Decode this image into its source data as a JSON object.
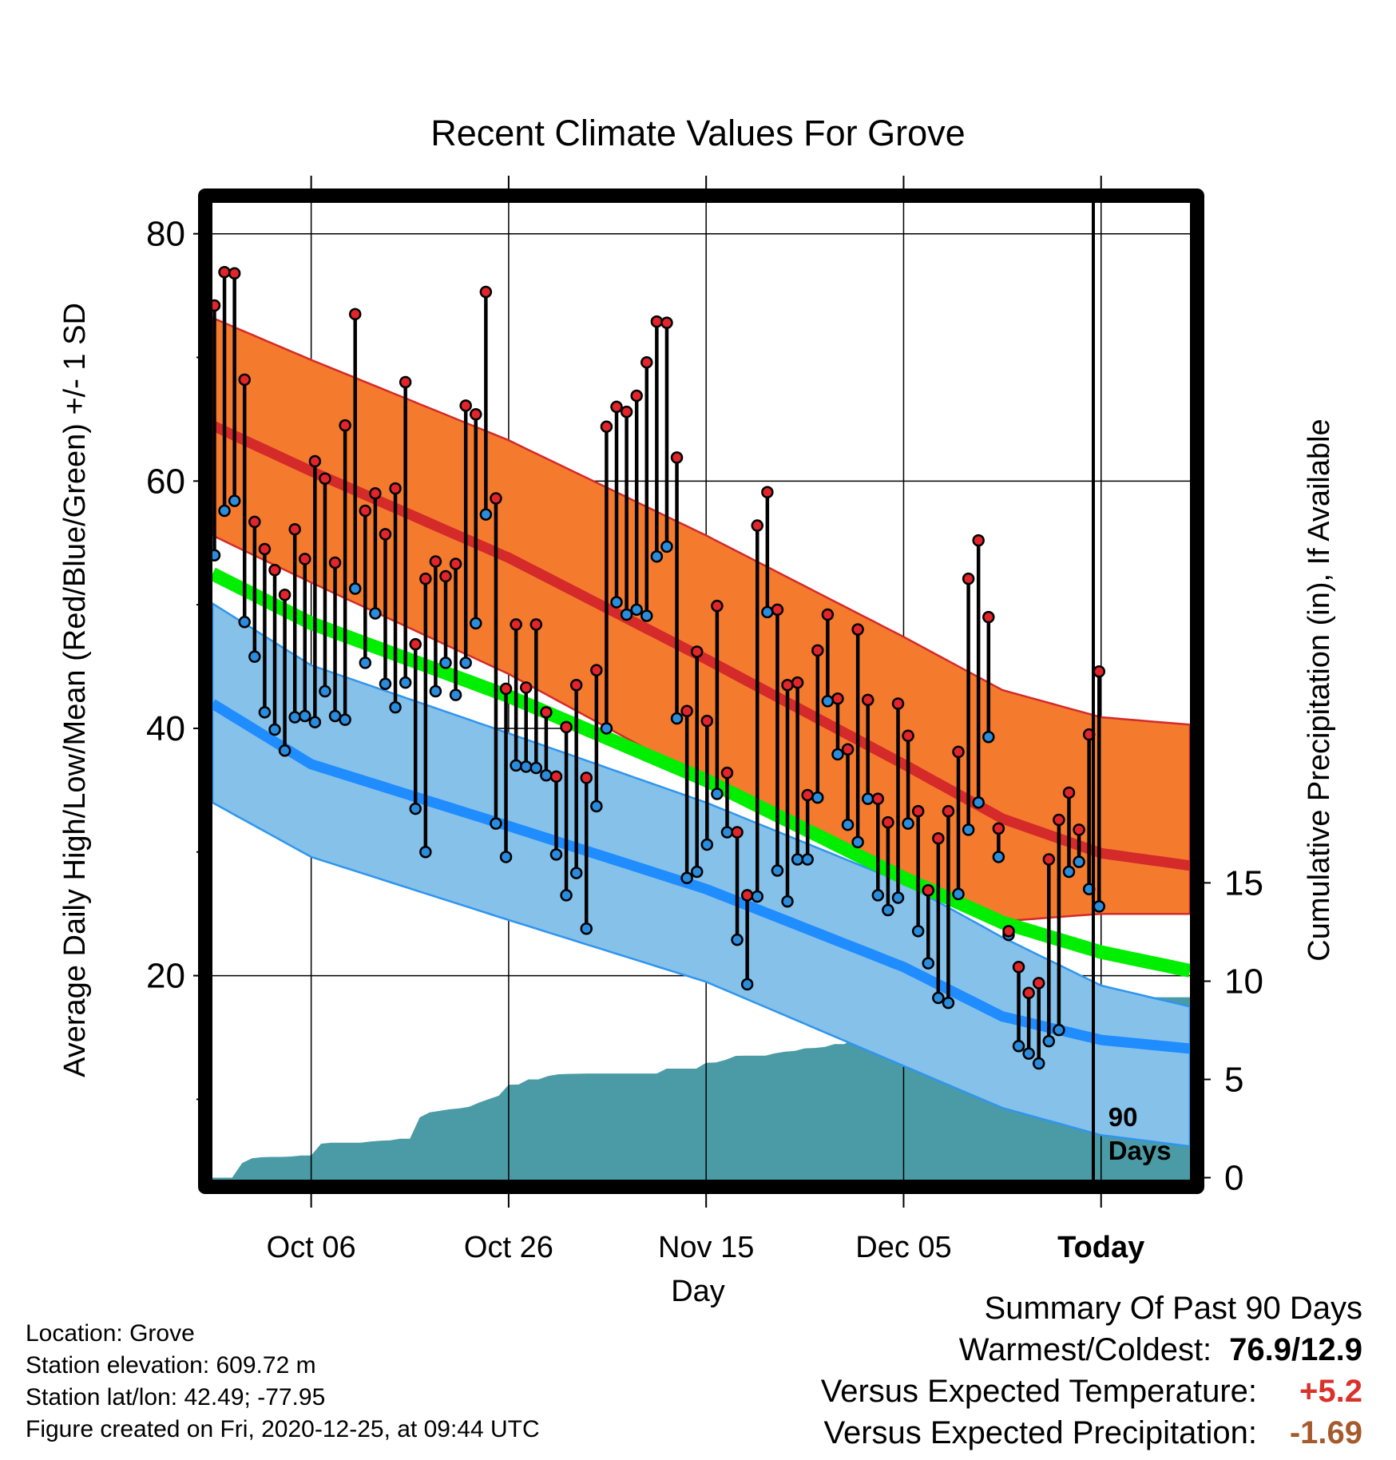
{
  "chart_data": {
    "type": "line",
    "title": "Recent Climate Values For Grove",
    "xlabel": "Day",
    "ylabel": "Average Daily High/Low/Mean (Red/Blue/Green) +/- 1 SD",
    "y2label": "Cumulative Precipitation (in), If Available",
    "x_range_days": [
      -90,
      9
    ],
    "ylim": [
      3.5,
      82.5
    ],
    "y2lim": [
      -0.1,
      49.6
    ],
    "grid": true,
    "x_ticks": [
      {
        "day": -80,
        "label": "Oct 06"
      },
      {
        "day": -60,
        "label": "Oct 26"
      },
      {
        "day": -40,
        "label": "Nov 15"
      },
      {
        "day": -20,
        "label": "Dec 05"
      },
      {
        "day": 0,
        "label": "Today"
      }
    ],
    "y_ticks": [
      20,
      40,
      60,
      80
    ],
    "y2_ticks": [
      0,
      5,
      10,
      15
    ],
    "today_marker": "90\nDays",
    "normals": {
      "days": [
        -90,
        -80,
        -60,
        -40,
        -20,
        -10,
        0,
        9
      ],
      "high_mean": [
        64.5,
        60.8,
        53.8,
        45.6,
        37.1,
        32.7,
        29.9,
        28.9
      ],
      "high_upper": [
        73.2,
        69.8,
        63.3,
        55.6,
        47.4,
        43.1,
        40.9,
        40.3
      ],
      "high_lower": [
        55.6,
        51.8,
        44.4,
        35.7,
        27.3,
        24.4,
        25.0,
        25.0
      ],
      "low_mean": [
        42.0,
        37.1,
        32.1,
        27.0,
        20.7,
        16.7,
        14.8,
        14.1
      ],
      "low_upper": [
        50.1,
        45.1,
        39.6,
        34.0,
        27.5,
        23.1,
        19.2,
        17.5
      ],
      "low_lower": [
        34.0,
        29.6,
        24.5,
        19.5,
        12.7,
        9.3,
        7.1,
        6.2
      ],
      "avg_mean": [
        52.5,
        48.5,
        42.6,
        35.8,
        27.9,
        24.3,
        21.9,
        20.4
      ]
    },
    "series": [
      {
        "name": "Daily High",
        "values": [
          74.2,
          76.9,
          76.8,
          68.2,
          56.7,
          54.5,
          52.8,
          50.8,
          56.1,
          53.7,
          61.6,
          60.2,
          53.4,
          64.5,
          73.5,
          57.6,
          59.0,
          55.7,
          59.4,
          68.0,
          46.8,
          52.1,
          53.5,
          52.3,
          53.3,
          66.1,
          65.4,
          75.3,
          58.6,
          43.2,
          48.4,
          43.3,
          48.4,
          41.3,
          36.1,
          40.1,
          43.5,
          36.0,
          44.7,
          64.4,
          66.0,
          65.6,
          66.9,
          69.6,
          72.9,
          72.8,
          61.9,
          41.4,
          46.2,
          40.6,
          49.9,
          36.4,
          31.6,
          26.5,
          56.4,
          59.1,
          49.6,
          43.5,
          43.7,
          34.6,
          46.3,
          49.2,
          42.4,
          38.3,
          48.0,
          42.3,
          34.3,
          32.4,
          42.0,
          39.4,
          33.3,
          26.9,
          31.1,
          33.3,
          38.1,
          52.1,
          55.2,
          49.0,
          31.9,
          23.6,
          20.7,
          18.6,
          19.4,
          29.4,
          32.6,
          34.8,
          31.8,
          39.5,
          44.6
        ]
      },
      {
        "name": "Daily Low",
        "values": [
          54.0,
          57.6,
          58.4,
          48.6,
          45.8,
          41.3,
          39.9,
          38.2,
          40.9,
          41.0,
          40.5,
          43.0,
          41.0,
          40.7,
          51.3,
          45.3,
          49.3,
          43.6,
          41.7,
          43.7,
          33.5,
          30.0,
          43.0,
          45.3,
          42.7,
          45.3,
          48.5,
          57.3,
          32.3,
          29.6,
          37.0,
          36.9,
          36.8,
          36.2,
          29.8,
          26.5,
          28.3,
          23.8,
          33.7,
          40.0,
          50.2,
          49.2,
          49.6,
          49.1,
          53.9,
          54.7,
          40.8,
          27.9,
          28.4,
          30.6,
          34.7,
          31.6,
          22.9,
          19.3,
          26.4,
          49.4,
          28.5,
          26.0,
          29.4,
          29.4,
          34.4,
          42.2,
          37.9,
          32.2,
          30.8,
          34.3,
          26.5,
          25.3,
          26.3,
          32.3,
          23.6,
          21.0,
          18.2,
          17.8,
          26.6,
          31.8,
          34.0,
          39.3,
          29.6,
          23.3,
          14.3,
          13.7,
          12.9,
          14.7,
          15.6,
          28.4,
          29.2,
          27.0,
          25.6
        ]
      },
      {
        "name": "Cumulative Precipitation",
        "values": [
          0.0,
          0.0,
          0.0,
          0.74,
          0.99,
          1.04,
          1.06,
          1.06,
          1.08,
          1.13,
          1.13,
          1.73,
          1.78,
          1.78,
          1.78,
          1.78,
          1.84,
          1.88,
          1.9,
          1.98,
          1.98,
          3.07,
          3.32,
          3.4,
          3.48,
          3.53,
          3.61,
          3.82,
          4.0,
          4.17,
          4.73,
          4.74,
          5.0,
          5.0,
          5.17,
          5.26,
          5.28,
          5.29,
          5.3,
          5.3,
          5.3,
          5.3,
          5.3,
          5.3,
          5.3,
          5.3,
          5.55,
          5.55,
          5.55,
          5.55,
          5.85,
          5.86,
          6.0,
          6.2,
          6.21,
          6.21,
          6.21,
          6.33,
          6.41,
          6.45,
          6.58,
          6.6,
          6.65,
          6.8,
          6.8,
          7.07,
          7.08,
          7.08,
          7.08,
          7.1,
          7.1,
          7.1,
          7.1,
          7.1,
          7.13,
          7.13,
          7.13,
          7.13,
          7.13,
          7.13,
          7.19,
          7.17,
          7.19,
          7.19,
          7.69,
          7.69,
          7.69,
          7.69,
          7.69,
          7.7,
          9.18
        ]
      }
    ]
  },
  "info": {
    "location": "Location: Grove",
    "elevation": "Station elevation: 609.72 m",
    "latlon": "Station lat/lon: 42.49; -77.95",
    "created": "Figure created on Fri, 2020-12-25, at 09:44 UTC"
  },
  "summary": {
    "title": "Summary Of Past 90 Days",
    "warmest_label": "Warmest/Coldest:",
    "warmest_value": "76.9/12.9",
    "temp_label": "Versus Expected Temperature:",
    "temp_value": "+5.2",
    "precip_label": "Versus Expected Precipitation:",
    "precip_value": "-1.69"
  },
  "colors": {
    "high_band": "#f47a2e",
    "high_mean": "#d42a2a",
    "low_band": "#85c1e9",
    "low_mean": "#1f8cff",
    "avg_mean": "#00ee00",
    "overlap": "#941010",
    "precip": "#4a9ba6",
    "high_dot": "#e3252b",
    "low_dot": "#2a8cdd",
    "temp_value": "#d9322b",
    "precip_value": "#a65a2c"
  }
}
